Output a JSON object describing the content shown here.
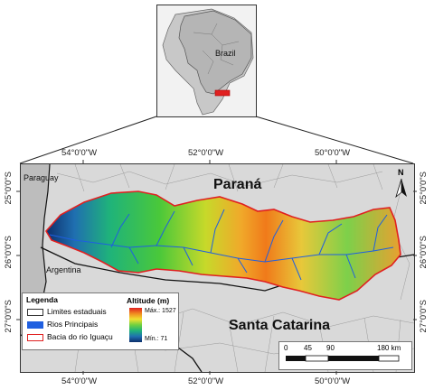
{
  "inset": {
    "country_label": "Brazil"
  },
  "main_map": {
    "states": {
      "north": "Paraná",
      "south": "Santa Catarina"
    },
    "countries": {
      "paraguay": "Paraguay",
      "argentina": "Argentina"
    },
    "top_coords": [
      "54°0'0\"W",
      "52°0'0\"W",
      "50°0'0\"W"
    ],
    "bottom_coords": [
      "54°0'0\"W",
      "52°0'0\"W",
      "50°0'0\"W"
    ],
    "left_coords": [
      "25°0'0\"S",
      "26°0'0\"S",
      "27°0'0\"S"
    ],
    "right_coords": [
      "25°0'0\"S",
      "26°0'0\"S",
      "27°0'0\"S"
    ],
    "north_arrow_label": "N"
  },
  "legend": {
    "title": "Legenda",
    "items": [
      {
        "label": "Limites estaduais",
        "color": "#ffffff",
        "border": "#333333"
      },
      {
        "label": "Rios Principais",
        "color": "#1f5fe0",
        "border": "#1f5fe0"
      },
      {
        "label": "Bacia do rio Iguaçu",
        "color": "#ffffff",
        "border": "#e02020"
      }
    ],
    "altitude_title": "Altitude (m)",
    "max_label": "Máx.: 1527",
    "min_label": "Mín.: 71"
  },
  "scale_bar": {
    "labels": [
      "0",
      "45",
      "90",
      "180 km"
    ]
  },
  "colors": {
    "land": "#d9d9d9",
    "foreign": "#bdbdbd",
    "basin_outline": "#e02020",
    "river": "#1f5fe0"
  }
}
